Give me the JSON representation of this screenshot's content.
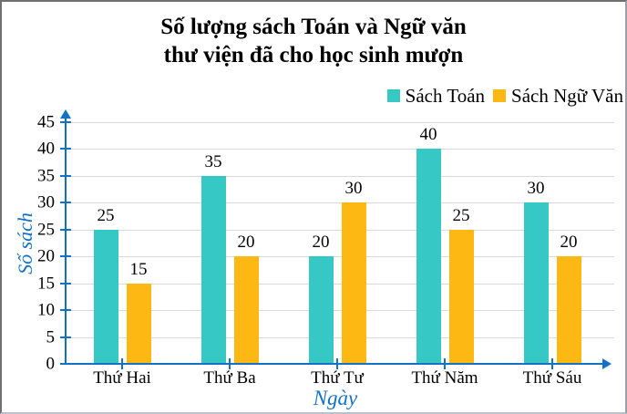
{
  "title": {
    "line1": "Số lượng sách Toán và Ngữ văn",
    "line2": "thư viện đã cho học sinh mượn"
  },
  "legend": [
    {
      "label": "Sách Toán",
      "color": "#35C8C4"
    },
    {
      "label": "Sách Ngữ Văn",
      "color": "#FDB813"
    }
  ],
  "chart_data": {
    "type": "bar",
    "title": "Số lượng sách Toán và Ngữ văn thư viện đã cho học sinh mượn",
    "categories": [
      "Thứ Hai",
      "Thứ Ba",
      "Thứ Tư",
      "Thứ Năm",
      "Thứ Sáu"
    ],
    "series": [
      {
        "name": "Sách Toán",
        "color": "#35C8C4",
        "values": [
          25,
          35,
          20,
          40,
          30
        ]
      },
      {
        "name": "Sách Ngữ Văn",
        "color": "#FDB813",
        "values": [
          15,
          20,
          30,
          25,
          20
        ]
      }
    ],
    "xlabel": "Ngày",
    "ylabel": "Số sách",
    "ylim": [
      0,
      45
    ],
    "yticks": [
      0,
      5,
      10,
      15,
      20,
      25,
      30,
      35,
      40,
      45
    ],
    "grid": true,
    "bar_labels": true,
    "legend_position": "top-right",
    "axis_color": "#1472C6",
    "grid_color": "#D9D9D9",
    "axis_label_color": "#1472C6",
    "text_color": "#000000"
  }
}
